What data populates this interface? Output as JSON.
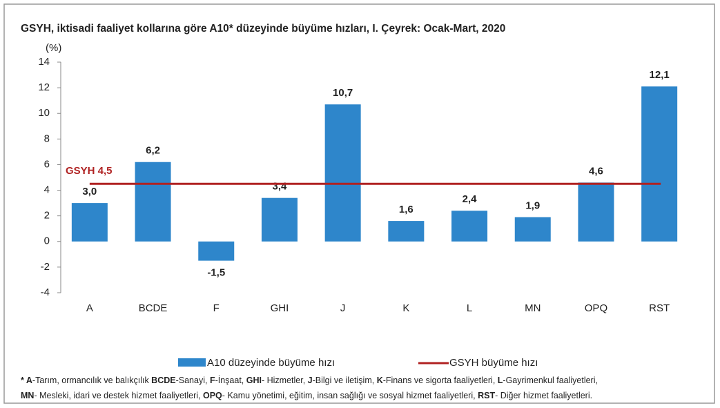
{
  "chart_data": {
    "type": "bar",
    "title": "GSYH, iktisadi faaliyet kollarına göre A10* düzeyinde büyüme hızları, I. Çeyrek: Ocak-Mart, 2020",
    "y_unit": "(%)",
    "categories": [
      "A",
      "BCDE",
      "F",
      "GHI",
      "J",
      "K",
      "L",
      "MN",
      "OPQ",
      "RST"
    ],
    "series": [
      {
        "name": "A10 düzeyinde büyüme hızı",
        "color": "#2e86cb",
        "values": [
          3.0,
          6.2,
          -1.5,
          3.4,
          10.7,
          1.6,
          2.4,
          1.9,
          4.6,
          12.1
        ],
        "value_labels": [
          "3,0",
          "6,2",
          "-1,5",
          "3,4",
          "10,7",
          "1,6",
          "2,4",
          "1,9",
          "4,6",
          "12,1"
        ]
      }
    ],
    "reference_line": {
      "name": "GSYH büyüme hızı",
      "value": 4.5,
      "label": "GSYH 4,5",
      "color": "#b02222"
    },
    "ylim": [
      -4,
      14
    ],
    "yticks": [
      -4,
      -2,
      0,
      2,
      4,
      6,
      8,
      10,
      12,
      14
    ],
    "footnote": [
      [
        {
          "text": "* A",
          "bold": true
        },
        {
          "text": "-Tarım, ormancılık ve balıkçılık ",
          "bold": false
        },
        {
          "text": "BCDE",
          "bold": true
        },
        {
          "text": "-Sanayi, ",
          "bold": false
        },
        {
          "text": "F",
          "bold": true
        },
        {
          "text": "-İnşaat, ",
          "bold": false
        },
        {
          "text": "GHI",
          "bold": true
        },
        {
          "text": "- Hizmetler, ",
          "bold": false
        },
        {
          "text": "J",
          "bold": true
        },
        {
          "text": "-Bilgi ve iletişim, ",
          "bold": false
        },
        {
          "text": "K",
          "bold": true
        },
        {
          "text": "-Finans ve sigorta faaliyetleri, ",
          "bold": false
        },
        {
          "text": "L",
          "bold": true
        },
        {
          "text": "-Gayrimenkul faaliyetleri,",
          "bold": false
        }
      ],
      [
        {
          "text": "MN",
          "bold": true
        },
        {
          "text": "- Mesleki, idari ve destek hizmet faaliyetleri, ",
          "bold": false
        },
        {
          "text": "OPQ",
          "bold": true
        },
        {
          "text": "- Kamu yönetimi, eğitim, insan sağlığı ve sosyal hizmet faaliyetleri, ",
          "bold": false
        },
        {
          "text": "RST",
          "bold": true
        },
        {
          "text": "- Diğer hizmet faaliyetleri.",
          "bold": false
        }
      ]
    ]
  }
}
